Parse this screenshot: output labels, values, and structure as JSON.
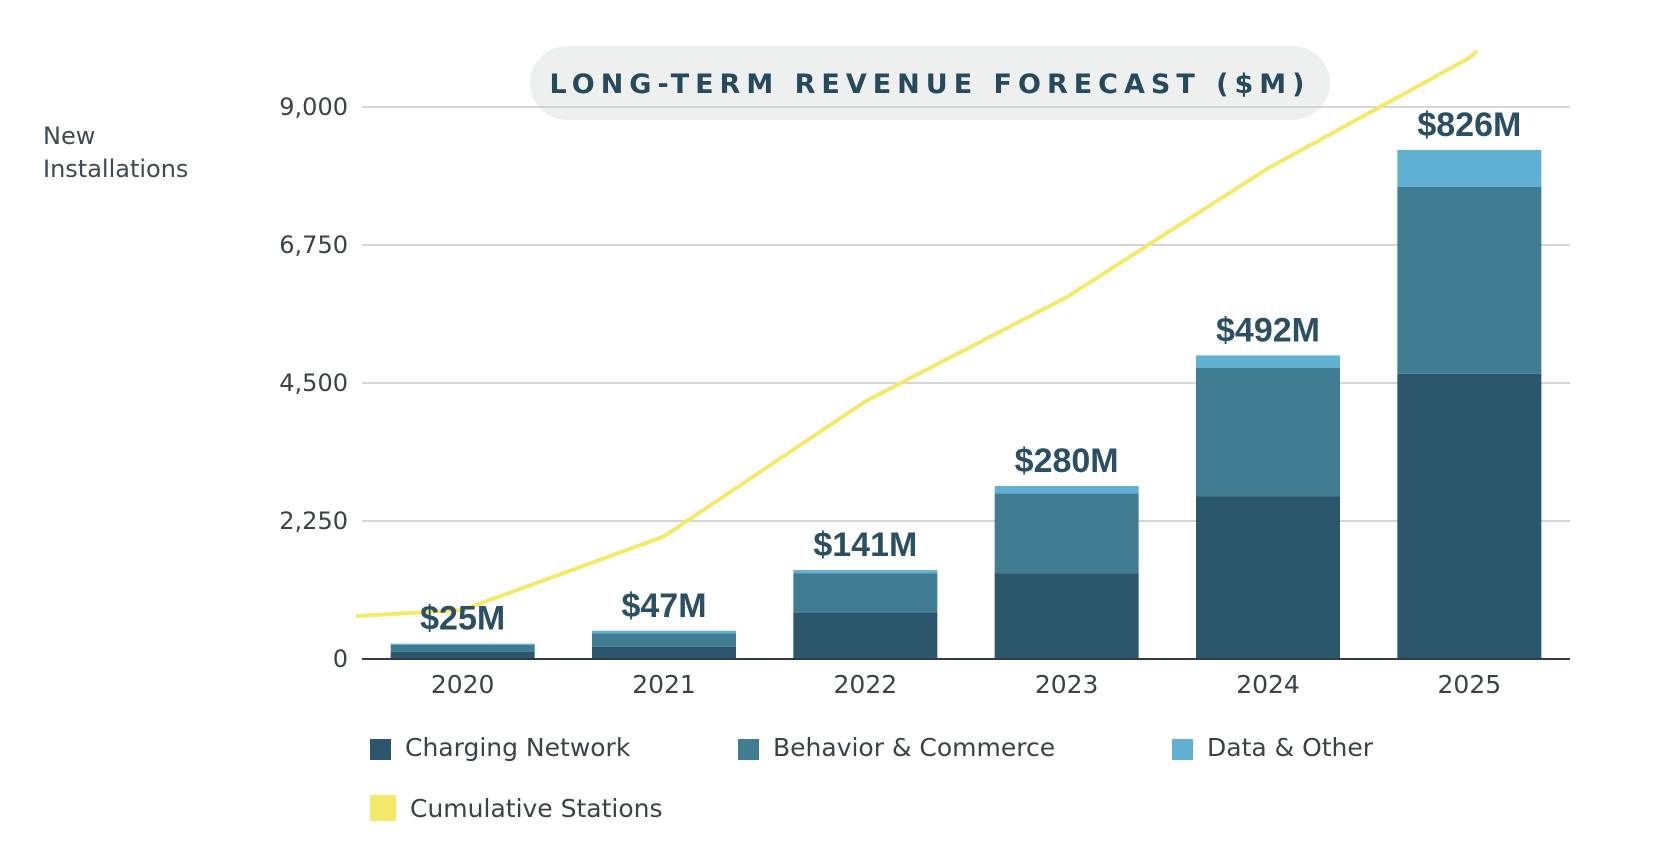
{
  "chart_data": {
    "type": "bar",
    "title": "LONG-TERM REVENUE FORECAST ($M)",
    "ylabel_line1": "New",
    "ylabel_line2": "Installations",
    "ylim": [
      0,
      9000
    ],
    "yticks": [
      "9,000",
      "6,750",
      "4,500",
      "2,250",
      "0"
    ],
    "ytick_values": [
      9000,
      6750,
      4500,
      2250,
      0
    ],
    "grid": true,
    "categories": [
      "2020",
      "2021",
      "2022",
      "2023",
      "2024",
      "2025"
    ],
    "series": [
      {
        "name": "Charging Network",
        "color": "#2c566b",
        "values": [
          120,
          200,
          750,
          1400,
          2650,
          4650
        ]
      },
      {
        "name": "Behavior & Commerce",
        "color": "#417d92",
        "values": [
          110,
          220,
          650,
          1300,
          2100,
          3050
        ]
      },
      {
        "name": "Data & Other",
        "color": "#5fb0d2",
        "values": [
          20,
          40,
          50,
          120,
          200,
          600
        ]
      },
      {
        "name": "Cumulative Stations",
        "color": "#f5e96a",
        "type": "line",
        "values": [
          800,
          2000,
          4200,
          5900,
          8000,
          9800
        ]
      }
    ],
    "data_labels": [
      "$25M",
      "$47M",
      "$141M",
      "$280M",
      "$492M",
      "$826M"
    ],
    "legend": [
      "Charging Network",
      "Behavior & Commerce",
      "Data & Other",
      "Cumulative Stations"
    ],
    "legend_position": "bottom"
  }
}
